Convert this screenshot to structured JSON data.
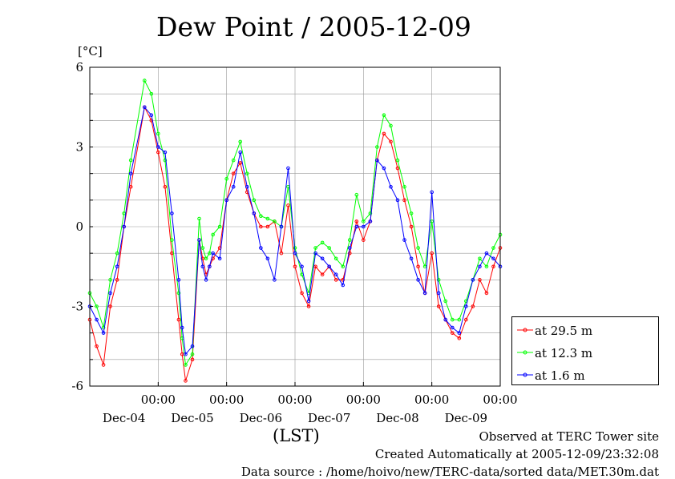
{
  "chart_data": {
    "type": "line",
    "title": "Dew Point / 2005-12-09",
    "ylabel": "[°C]",
    "xlabel": "(LST)",
    "ylim": [
      -6,
      6
    ],
    "xlim": [
      0,
      6
    ],
    "yticks": [
      6,
      3,
      0,
      -3,
      -6
    ],
    "ytick_labels": [
      "6",
      "3",
      "0",
      "-3",
      "-6"
    ],
    "xtick_labels": [
      {
        "time": "00:00",
        "date": "Dec-04"
      },
      {
        "time": "00:00",
        "date": "Dec-05"
      },
      {
        "time": "00:00",
        "date": "Dec-06"
      },
      {
        "time": "00:00",
        "date": "Dec-07"
      },
      {
        "time": "00:00",
        "date": "Dec-08"
      },
      {
        "time": "00:00",
        "date": "Dec-09"
      }
    ],
    "grid": true,
    "legend_position": "right-bottom-outside",
    "series": [
      {
        "name": "at 29.5 m",
        "color": "#ff0000",
        "x": [
          0,
          0.1,
          0.2,
          0.3,
          0.4,
          0.5,
          0.6,
          0.8,
          0.9,
          1.0,
          1.1,
          1.2,
          1.3,
          1.35,
          1.4,
          1.5,
          1.6,
          1.65,
          1.7,
          1.75,
          1.8,
          1.9,
          2.0,
          2.1,
          2.2,
          2.3,
          2.4,
          2.5,
          2.6,
          2.7,
          2.8,
          2.9,
          3.0,
          3.1,
          3.2,
          3.3,
          3.4,
          3.5,
          3.6,
          3.7,
          3.8,
          3.9,
          4.0,
          4.1,
          4.2,
          4.3,
          4.4,
          4.5,
          4.6,
          4.7,
          4.8,
          4.9,
          5.0,
          5.1,
          5.2,
          5.3,
          5.4,
          5.5,
          5.6,
          5.7,
          5.8,
          5.9,
          6.0
        ],
        "y": [
          -3.5,
          -4.5,
          -5.2,
          -3.0,
          -2.0,
          0.0,
          1.5,
          4.5,
          4.0,
          2.8,
          1.5,
          -1.0,
          -3.5,
          -4.8,
          -5.8,
          -5.0,
          -0.5,
          -1.2,
          -1.8,
          -1.5,
          -1.2,
          -0.8,
          1.0,
          2.0,
          2.4,
          1.3,
          0.5,
          0.0,
          0.0,
          0.2,
          -1.0,
          0.8,
          -1.5,
          -2.5,
          -3.0,
          -1.5,
          -1.8,
          -1.5,
          -2.0,
          -2.0,
          -1.0,
          0.2,
          -0.5,
          0.2,
          2.5,
          3.5,
          3.2,
          2.2,
          1.0,
          0.0,
          -1.5,
          -2.5,
          -1.0,
          -3.0,
          -3.5,
          -4.0,
          -4.2,
          -3.5,
          -3.0,
          -2.0,
          -2.5,
          -1.5,
          -0.8
        ]
      },
      {
        "name": "at 12.3 m",
        "color": "#00ff00",
        "x": [
          0,
          0.1,
          0.2,
          0.3,
          0.4,
          0.5,
          0.6,
          0.8,
          0.9,
          1.0,
          1.1,
          1.2,
          1.3,
          1.35,
          1.4,
          1.5,
          1.6,
          1.65,
          1.7,
          1.75,
          1.8,
          1.9,
          2.0,
          2.1,
          2.2,
          2.3,
          2.4,
          2.5,
          2.6,
          2.7,
          2.8,
          2.9,
          3.0,
          3.1,
          3.2,
          3.3,
          3.4,
          3.5,
          3.6,
          3.7,
          3.8,
          3.9,
          4.0,
          4.1,
          4.2,
          4.3,
          4.4,
          4.5,
          4.6,
          4.7,
          4.8,
          4.9,
          5.0,
          5.1,
          5.2,
          5.3,
          5.4,
          5.5,
          5.6,
          5.7,
          5.8,
          5.9,
          6.0
        ],
        "y": [
          -2.5,
          -3.0,
          -3.8,
          -2.0,
          -1.0,
          0.5,
          2.5,
          5.5,
          5.0,
          3.5,
          2.5,
          -0.5,
          -2.5,
          -4.2,
          -5.2,
          -4.8,
          0.3,
          -0.8,
          -1.2,
          -1.0,
          -0.3,
          0.0,
          1.8,
          2.5,
          3.2,
          2.0,
          1.0,
          0.4,
          0.3,
          0.2,
          0.0,
          1.5,
          -0.8,
          -1.8,
          -2.5,
          -0.8,
          -0.6,
          -0.8,
          -1.2,
          -1.5,
          -0.5,
          1.2,
          0.2,
          0.5,
          3.0,
          4.2,
          3.8,
          2.5,
          1.5,
          0.5,
          -0.8,
          -1.5,
          0.2,
          -2.0,
          -2.8,
          -3.5,
          -3.5,
          -2.8,
          -2.0,
          -1.2,
          -1.5,
          -0.8,
          -0.3
        ]
      },
      {
        "name": "at 1.6 m",
        "color": "#0000ff",
        "x": [
          0,
          0.1,
          0.2,
          0.3,
          0.4,
          0.5,
          0.6,
          0.8,
          0.9,
          1.0,
          1.1,
          1.2,
          1.3,
          1.35,
          1.4,
          1.5,
          1.6,
          1.65,
          1.7,
          1.75,
          1.8,
          1.9,
          2.0,
          2.1,
          2.2,
          2.3,
          2.4,
          2.5,
          2.6,
          2.7,
          2.8,
          2.9,
          3.0,
          3.1,
          3.2,
          3.3,
          3.4,
          3.5,
          3.6,
          3.7,
          3.8,
          3.9,
          4.0,
          4.1,
          4.2,
          4.3,
          4.4,
          4.5,
          4.6,
          4.7,
          4.8,
          4.9,
          5.0,
          5.1,
          5.2,
          5.3,
          5.4,
          5.5,
          5.6,
          5.7,
          5.8,
          5.9,
          6.0
        ],
        "y": [
          -3.0,
          -3.5,
          -4.0,
          -2.5,
          -1.5,
          0.0,
          2.0,
          4.5,
          4.2,
          3.0,
          2.8,
          0.5,
          -2.0,
          -3.8,
          -4.8,
          -4.5,
          -0.5,
          -1.5,
          -2.0,
          -1.5,
          -1.0,
          -1.2,
          1.0,
          1.5,
          2.8,
          1.5,
          0.5,
          -0.8,
          -1.2,
          -2.0,
          0.0,
          2.2,
          -1.0,
          -1.5,
          -2.8,
          -1.0,
          -1.2,
          -1.5,
          -1.8,
          -2.2,
          -0.8,
          0.0,
          0.0,
          0.2,
          2.5,
          2.2,
          1.5,
          1.0,
          -0.5,
          -1.2,
          -2.0,
          -2.5,
          1.3,
          -2.5,
          -3.5,
          -3.8,
          -4.0,
          -3.0,
          -2.0,
          -1.5,
          -1.0,
          -1.2,
          -1.5
        ]
      }
    ]
  },
  "footer": {
    "observed": "Observed at TERC Tower site",
    "created": "Created Automatically at 2005-12-09/23:32:08",
    "source": "Data source : /home/hoivo/new/TERC-data/sorted  data/MET.30m.dat"
  }
}
